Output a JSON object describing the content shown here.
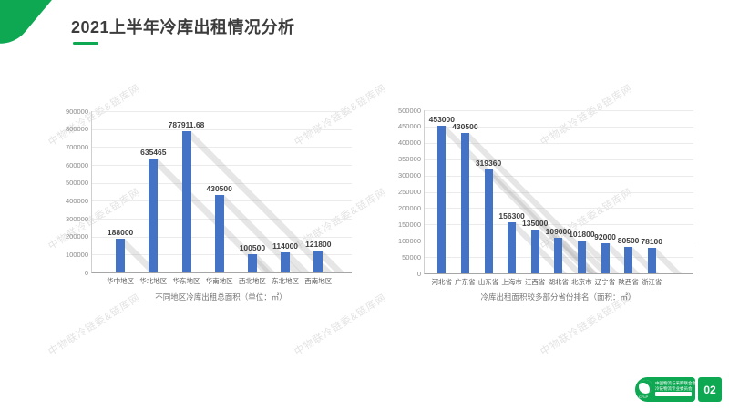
{
  "slide_title": "2021上半年冷库出租情况分析",
  "watermark_text": "中物联冷链委&链库网",
  "page_number": "02",
  "footer": {
    "org_line1": "中国物流与采购联合会",
    "org_line2": "冷链物流专业委员会",
    "org_abbr": "CFLP"
  },
  "colors": {
    "accent_green": "#0ea853",
    "bar_blue": "#4472c4",
    "shadow_gray": "rgba(172,172,172,0.30)"
  },
  "chart_data": [
    {
      "type": "bar",
      "title": "不同地区冷库出租总面积（单位：㎡）",
      "categories": [
        "华中地区",
        "华北地区",
        "华东地区",
        "华南地区",
        "西北地区",
        "东北地区",
        "西南地区"
      ],
      "values": [
        188000,
        635465,
        787911.68,
        430500,
        100500,
        114000,
        121800
      ],
      "value_labels": [
        "188000",
        "635465",
        "787911.68",
        "430500",
        "100500",
        "114000",
        "121800"
      ],
      "ylim": [
        0,
        900000
      ],
      "ytick_step": 100000,
      "grid": true,
      "legend": "none"
    },
    {
      "type": "bar",
      "title": "冷库出租面积较多部分省份排名（面积：㎡）",
      "categories": [
        "河北省",
        "广东省",
        "山东省",
        "上海市",
        "江西省",
        "湖北省",
        "北京市",
        "辽宁省",
        "陕西省",
        "浙江省"
      ],
      "values": [
        453000,
        430500,
        319360,
        156300,
        135000,
        109000,
        101800,
        92000,
        80500,
        78100
      ],
      "value_labels": [
        "453000",
        "430500",
        "319360",
        "156300",
        "135000",
        "109000",
        "101800",
        "92000",
        "80500",
        "78100"
      ],
      "ylim": [
        0,
        500000
      ],
      "ytick_step": 50000,
      "grid": true,
      "legend": "none"
    }
  ]
}
